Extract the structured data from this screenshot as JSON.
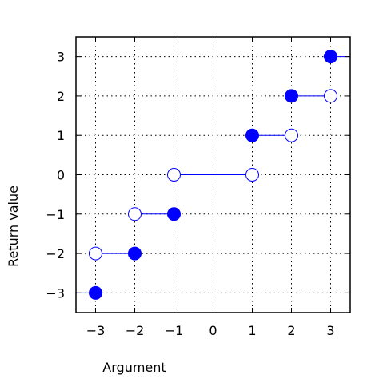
{
  "chart_data": {
    "type": "scatter",
    "xlabel": "Argument",
    "ylabel": "Return value",
    "xlim": [
      -3.5,
      3.5
    ],
    "ylim": [
      -3.5,
      3.5
    ],
    "x_ticks": [
      {
        "value": -3,
        "label": "−3"
      },
      {
        "value": -2,
        "label": "−2"
      },
      {
        "value": -1,
        "label": "−1"
      },
      {
        "value": 0,
        "label": "0"
      },
      {
        "value": 1,
        "label": "1"
      },
      {
        "value": 2,
        "label": "2"
      },
      {
        "value": 3,
        "label": "3"
      }
    ],
    "y_ticks": [
      {
        "value": 3,
        "label": "3"
      },
      {
        "value": 2,
        "label": "2"
      },
      {
        "value": 1,
        "label": "1"
      },
      {
        "value": 0,
        "label": "0"
      },
      {
        "value": -1,
        "label": "−1"
      },
      {
        "value": -2,
        "label": "−2"
      },
      {
        "value": -3,
        "label": "−3"
      }
    ],
    "grid": true,
    "grid_style": "dotted",
    "segments": [
      {
        "x": [
          -3.5,
          -3
        ],
        "y": -3
      },
      {
        "x": [
          -3,
          -2
        ],
        "y": -2
      },
      {
        "x": [
          -2,
          -1
        ],
        "y": -1
      },
      {
        "x": [
          -1,
          1
        ],
        "y": 0
      },
      {
        "x": [
          1,
          2
        ],
        "y": 1
      },
      {
        "x": [
          2,
          3
        ],
        "y": 2
      },
      {
        "x": [
          3,
          3.5
        ],
        "y": 3
      }
    ],
    "points_filled": [
      {
        "x": -3,
        "y": -3
      },
      {
        "x": -2,
        "y": -2
      },
      {
        "x": -1,
        "y": -1
      },
      {
        "x": 1,
        "y": 1
      },
      {
        "x": 2,
        "y": 2
      },
      {
        "x": 3,
        "y": 3
      }
    ],
    "points_open": [
      {
        "x": -3,
        "y": -2
      },
      {
        "x": -2,
        "y": -1
      },
      {
        "x": -1,
        "y": 0
      },
      {
        "x": 1,
        "y": 0
      },
      {
        "x": 2,
        "y": 1
      },
      {
        "x": 3,
        "y": 2
      }
    ],
    "colors": {
      "series": "#0000ff",
      "axes": "#000000",
      "grid": "#000000"
    }
  }
}
